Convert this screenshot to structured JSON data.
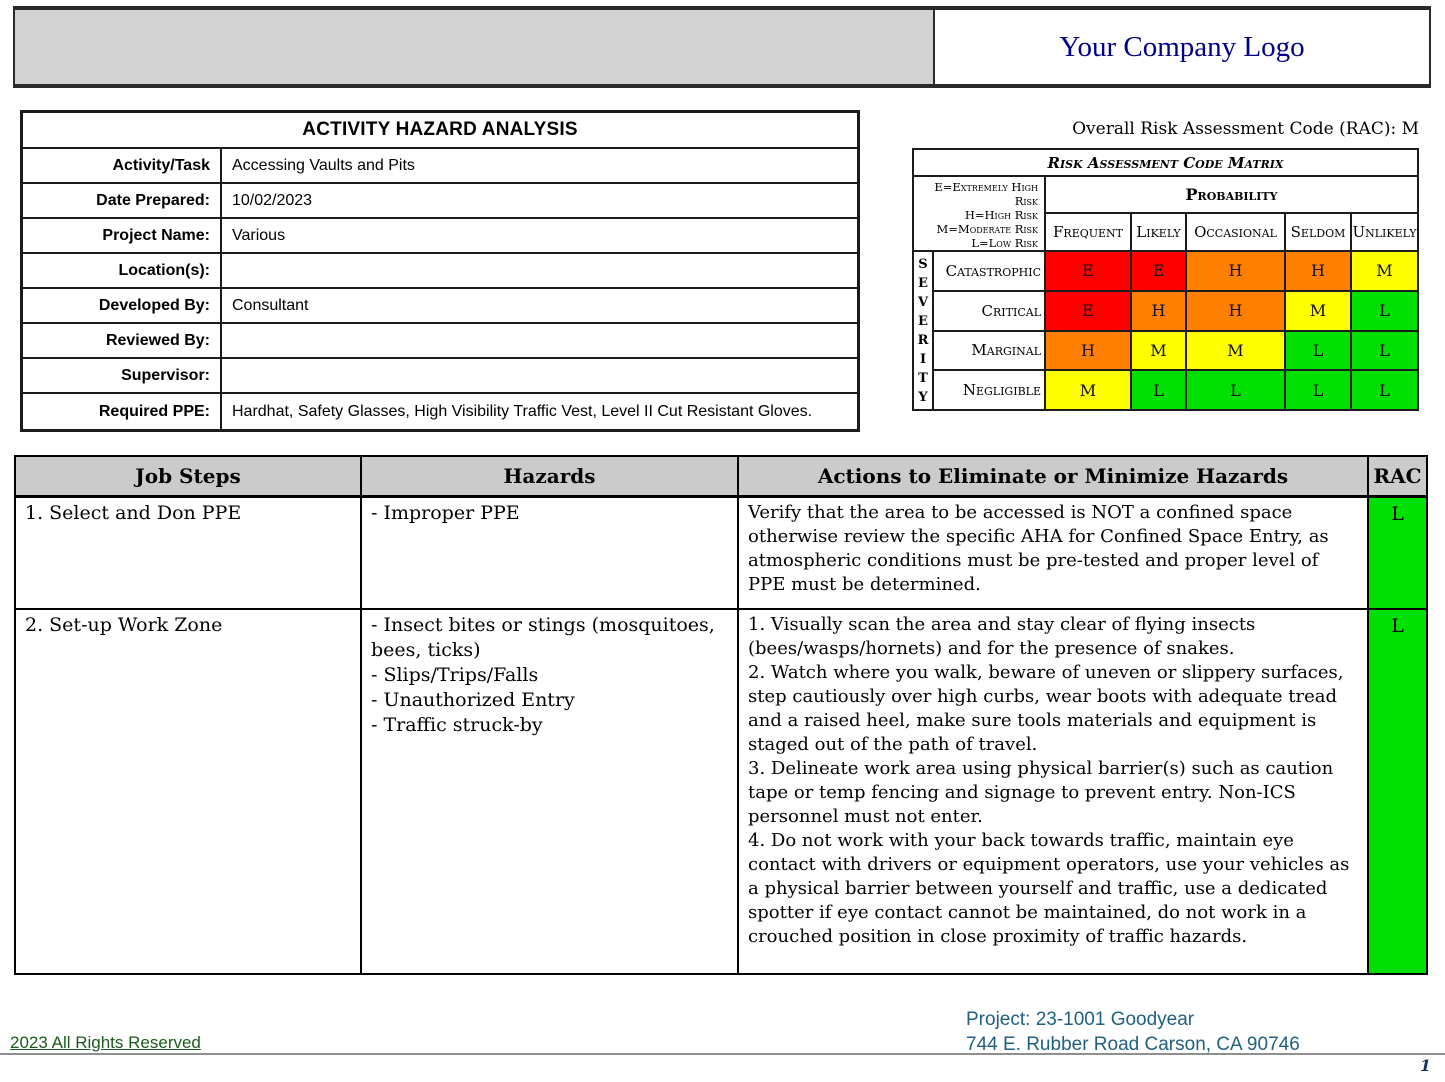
{
  "header": {
    "logo_text": "Your Company Logo"
  },
  "form": {
    "title": "ACTIVITY HAZARD ANALYSIS",
    "rows": [
      {
        "label": "Activity/Task",
        "value": "Accessing Vaults and Pits"
      },
      {
        "label": "Date Prepared:",
        "value": "10/02/2023"
      },
      {
        "label": "Project Name:",
        "value": "Various"
      },
      {
        "label": "Location(s):",
        "value": ""
      },
      {
        "label": "Developed By:",
        "value": "Consultant"
      },
      {
        "label": "Reviewed By:",
        "value": ""
      },
      {
        "label": "Supervisor:",
        "value": ""
      },
      {
        "label": "Required PPE:",
        "value": "Hardhat, Safety Glasses, High Visibility Traffic Vest, Level II Cut Resistant Gloves."
      }
    ]
  },
  "rac_summary": "Overall Risk Assessment Code (RAC): M",
  "matrix": {
    "title": "Risk Assessment Code Matrix",
    "legend": [
      "E=Extremely High Risk",
      "H=High Risk",
      "M=Moderate Risk",
      "L=Low Risk"
    ],
    "probability_label": "Probability",
    "severity_label": "S\nE\nV\nE\nR\nI\nT\nY",
    "columns": [
      "Frequent",
      "Likely",
      "Occasional",
      "Seldom",
      "Unlikely"
    ],
    "risk_colors": {
      "extremely_high": "#ff0000",
      "high": "#ff8000",
      "moderate": "#ffff00",
      "low": "#00df00"
    },
    "rows": [
      {
        "label": "Catastrophic",
        "cells": [
          {
            "letter": "E",
            "color": "#ff0000"
          },
          {
            "letter": "E",
            "color": "#ff0000"
          },
          {
            "letter": "H",
            "color": "#ff8000"
          },
          {
            "letter": "H",
            "color": "#ff8000"
          },
          {
            "letter": "M",
            "color": "#ffff00"
          }
        ]
      },
      {
        "label": "Critical",
        "cells": [
          {
            "letter": "E",
            "color": "#ff0000"
          },
          {
            "letter": "H",
            "color": "#ff8000"
          },
          {
            "letter": "H",
            "color": "#ff8000"
          },
          {
            "letter": "M",
            "color": "#ffff00"
          },
          {
            "letter": "L",
            "color": "#00df00"
          }
        ]
      },
      {
        "label": "Marginal",
        "cells": [
          {
            "letter": "H",
            "color": "#ff8000"
          },
          {
            "letter": "M",
            "color": "#ffff00"
          },
          {
            "letter": "M",
            "color": "#ffff00"
          },
          {
            "letter": "L",
            "color": "#00df00"
          },
          {
            "letter": "L",
            "color": "#00df00"
          }
        ]
      },
      {
        "label": "Negligible",
        "cells": [
          {
            "letter": "M",
            "color": "#ffff00"
          },
          {
            "letter": "L",
            "color": "#00df00"
          },
          {
            "letter": "L",
            "color": "#00df00"
          },
          {
            "letter": "L",
            "color": "#00df00"
          },
          {
            "letter": "L",
            "color": "#00df00"
          }
        ]
      }
    ]
  },
  "job_table": {
    "headers": [
      "Job Steps",
      "Hazards",
      "Actions to Eliminate or Minimize Hazards",
      "RAC"
    ],
    "rows": [
      {
        "step": "1. Select and Don PPE",
        "hazards": "- Improper PPE",
        "actions": "Verify that the area to be accessed is NOT a confined space otherwise review the specific AHA for Confined Space Entry, as atmospheric conditions must be pre-tested and proper level of PPE must be determined.",
        "rac": "L",
        "rac_color": "#00df00"
      },
      {
        "step": "2. Set-up Work Zone",
        "hazards": "- Insect bites or stings (mosquitoes, bees, ticks)\n- Slips/Trips/Falls\n- Unauthorized Entry\n- Traffic struck-by",
        "actions": "1. Visually scan the area and stay clear of flying insects (bees/wasps/hornets) and for the presence of snakes.\n2. Watch where you walk, beware of uneven or slippery surfaces, step cautiously over high curbs, wear boots with adequate tread and a raised heel, make sure tools materials and equipment is staged out of the path of travel.\n3. Delineate work area using physical barrier(s) such as caution tape or temp fencing and signage to prevent entry. Non-ICS personnel must not enter.\n4. Do not work with your back towards traffic, maintain eye contact with drivers or equipment operators, use your vehicles as a physical barrier between yourself and traffic, use a dedicated spotter if eye contact cannot be maintained, do not work in a crouched position in close proximity of traffic hazards.",
        "rac": "L",
        "rac_color": "#00df00"
      }
    ]
  },
  "footer": {
    "copyright": "2023 All Rights Reserved",
    "project_line1": "Project: 23-1001 Goodyear",
    "project_line2": "744 E. Rubber Road Carson, CA 90746",
    "page_number": "1"
  }
}
